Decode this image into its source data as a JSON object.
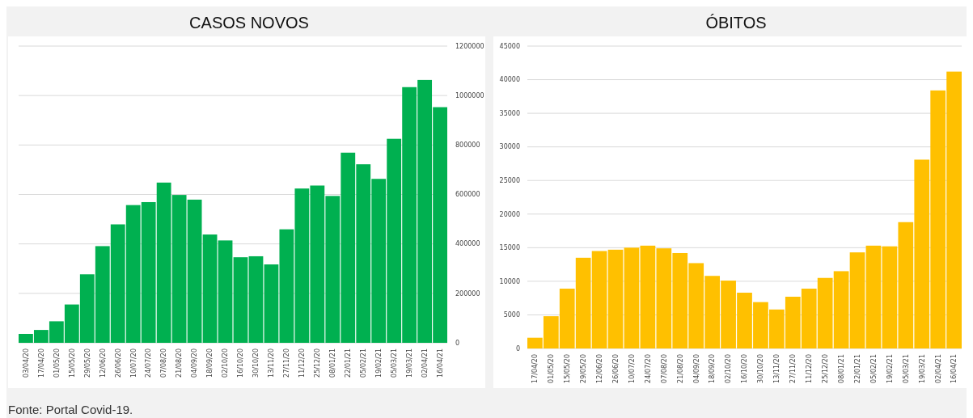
{
  "chart_data": [
    {
      "type": "bar",
      "title": "CASOS NOVOS",
      "categories": [
        "03/04/20",
        "17/04/20",
        "01/05/20",
        "15/05/20",
        "29/05/20",
        "12/06/20",
        "26/06/20",
        "10/07/20",
        "24/07/20",
        "07/08/20",
        "21/08/20",
        "04/09/20",
        "18/09/20",
        "02/10/20",
        "16/10/20",
        "30/10/20",
        "13/11/20",
        "27/11/20",
        "11/12/20",
        "25/12/20",
        "08/01/21",
        "22/01/21",
        "05/02/21",
        "19/02/21",
        "05/03/21",
        "19/03/21",
        "02/04/21",
        "16/04/21"
      ],
      "series": [
        {
          "color": "#00b050",
          "axis": "y2",
          "values": [
            36000,
            52000,
            87000,
            155000,
            277000,
            391000,
            479000,
            557000,
            569000,
            648000,
            598000,
            579000,
            438000,
            414000,
            346000,
            350000,
            317000,
            459000,
            624000,
            636000,
            594000,
            769000,
            722000,
            663000,
            825000,
            1034000,
            1063000,
            953000
          ]
        }
      ],
      "y2lim": [
        0,
        1200000
      ],
      "y2ticks": [
        0,
        200000,
        400000,
        600000,
        800000,
        1000000,
        1200000
      ],
      "grid": true,
      "annotations": [
        "Fonte: Portal Covid-19."
      ]
    },
    {
      "type": "bar",
      "title": "ÓBITOS",
      "categories": [
        "17/04/20",
        "01/05/20",
        "15/05/20",
        "29/05/20",
        "12/06/20",
        "26/06/20",
        "10/07/20",
        "24/07/20",
        "07/08/20",
        "21/08/20",
        "04/09/20",
        "18/09/20",
        "02/10/20",
        "16/10/20",
        "30/10/20",
        "13/11/20",
        "27/11/20",
        "11/12/20",
        "25/12/20",
        "08/01/21",
        "22/01/21",
        "05/02/21",
        "19/02/21",
        "05/03/21",
        "19/03/21",
        "02/04/21",
        "16/04/21"
      ],
      "series": [
        {
          "color": "#ffc000",
          "values": [
            1600,
            4800,
            8900,
            13500,
            14500,
            14700,
            15000,
            15300,
            14900,
            14200,
            12700,
            10800,
            10100,
            8300,
            6900,
            5800,
            7700,
            8900,
            10500,
            11500,
            14300,
            15300,
            15200,
            18800,
            28100,
            38400,
            41200
          ]
        }
      ],
      "ylim": [
        0,
        45000
      ],
      "yticks": [
        0,
        5000,
        10000,
        15000,
        20000,
        25000,
        30000,
        35000,
        40000,
        45000
      ],
      "grid": true
    }
  ]
}
